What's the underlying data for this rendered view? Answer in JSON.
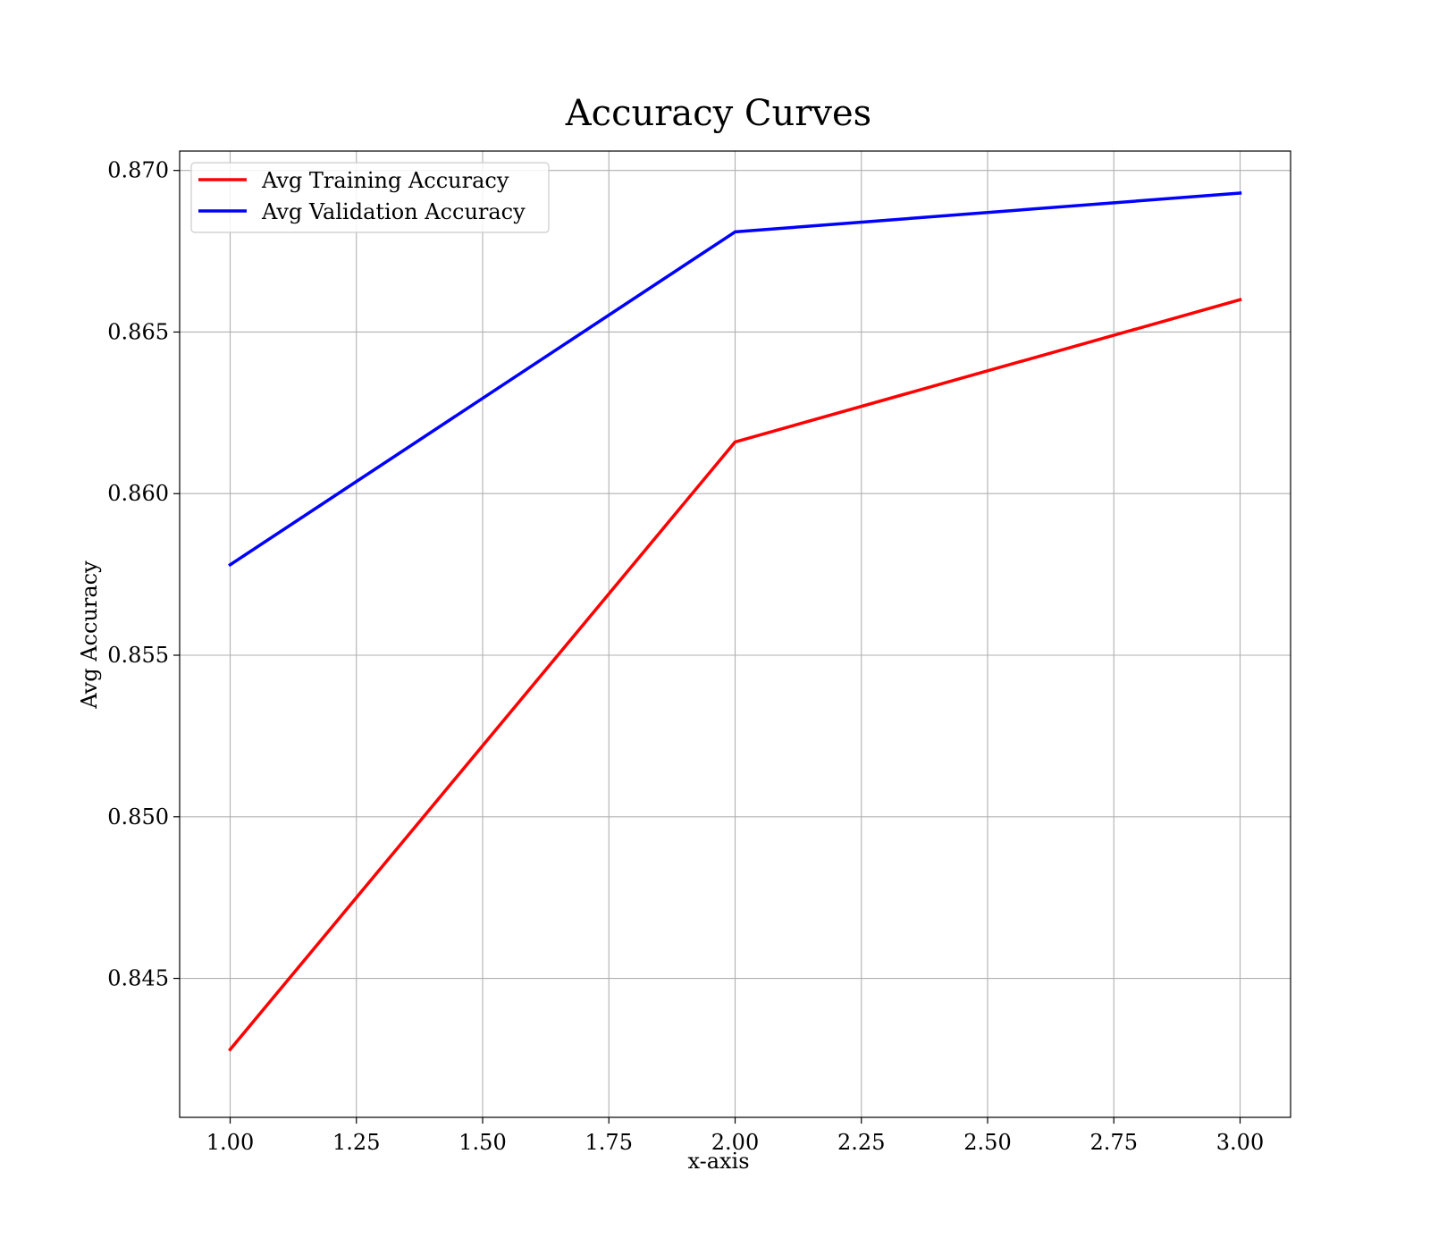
{
  "chart_data": {
    "type": "line",
    "title": "Accuracy Curves",
    "xlabel": "x-axis",
    "ylabel": "Avg Accuracy",
    "xlim": [
      0.9,
      3.1
    ],
    "ylim": [
      0.8407,
      0.8706
    ],
    "xticks": [
      1.0,
      1.25,
      1.5,
      1.75,
      2.0,
      2.25,
      2.5,
      2.75,
      3.0
    ],
    "xtick_labels": [
      "1.00",
      "1.25",
      "1.50",
      "1.75",
      "2.00",
      "2.25",
      "2.50",
      "2.75",
      "3.00"
    ],
    "yticks": [
      0.845,
      0.85,
      0.855,
      0.86,
      0.865,
      0.87
    ],
    "ytick_labels": [
      "0.845",
      "0.850",
      "0.855",
      "0.860",
      "0.865",
      "0.870"
    ],
    "grid": true,
    "legend_position": "top-left",
    "series": [
      {
        "name": "Avg Training Accuracy",
        "color": "#ff0000",
        "x": [
          1,
          2,
          3
        ],
        "values": [
          0.8428,
          0.8616,
          0.866
        ]
      },
      {
        "name": "Avg Validation Accuracy",
        "color": "#0000ff",
        "x": [
          1,
          2,
          3
        ],
        "values": [
          0.8578,
          0.8681,
          0.8693
        ]
      }
    ]
  }
}
